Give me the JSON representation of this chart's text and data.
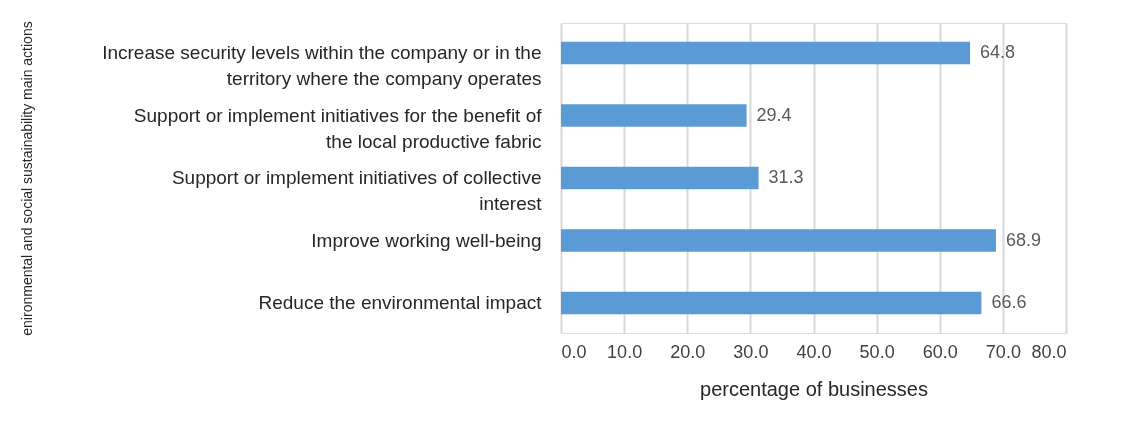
{
  "chart_data": {
    "type": "bar",
    "orientation": "horizontal",
    "categories": [
      "Increase security levels within the company or in the territory where the company operates",
      "Support or implement initiatives for the benefit of the local productive fabric",
      "Support or implement initiatives of collective interest",
      "Improve working well-being",
      "Reduce the environmental impact"
    ],
    "values": [
      64.8,
      29.4,
      31.3,
      68.9,
      66.6
    ],
    "color": "#5b9bd5",
    "xlim": [
      0,
      80
    ],
    "xticks": [
      {
        "value": 0,
        "label": "0.0"
      },
      {
        "value": 10,
        "label": "10.0"
      },
      {
        "value": 20,
        "label": "20.0"
      },
      {
        "value": 30,
        "label": "30.0"
      },
      {
        "value": 40,
        "label": "40.0"
      },
      {
        "value": 50,
        "label": "50.0"
      },
      {
        "value": 60,
        "label": "60.0"
      },
      {
        "value": 70,
        "label": "70.0"
      },
      {
        "value": 80,
        "label": "80.0"
      }
    ],
    "xlabel": "percentage of businesses",
    "ylabel": "enironmental and social sustainability main actions",
    "grid": "x",
    "data_labels": true
  }
}
